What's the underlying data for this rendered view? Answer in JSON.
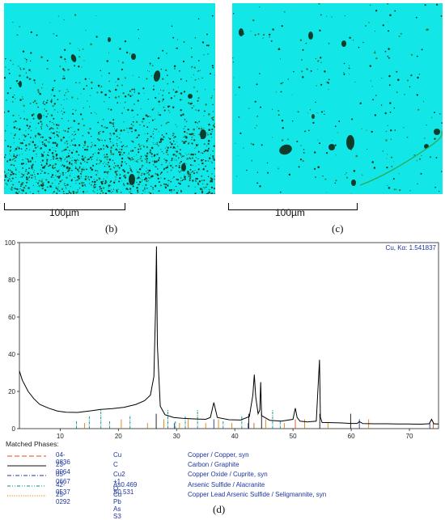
{
  "panels": [
    {
      "label": "(b)",
      "scale_bar": "100µm"
    },
    {
      "label": "(c)",
      "scale_bar": "100µm"
    },
    {
      "label": "(d)"
    }
  ],
  "colors": {
    "map_background": "#12e6e6",
    "particles": "#0f3d2c",
    "trace": "#000000",
    "legend_text": "#1c35a0"
  },
  "chart_data": {
    "type": "line",
    "title": "",
    "annotation": "Cu, Kα: 1.541837",
    "xlabel": "",
    "ylabel": "",
    "xlim": [
      3,
      75
    ],
    "ylim": [
      0,
      100
    ],
    "x_ticks": [
      10,
      20,
      30,
      40,
      50,
      60,
      70
    ],
    "y_ticks": [
      0,
      20,
      40,
      60,
      80,
      100
    ],
    "grid": false,
    "series": [
      {
        "type": "line",
        "x": [
          3,
          3.5,
          4.5,
          5.5,
          6.5,
          8,
          9.5,
          11,
          13,
          15,
          17,
          19,
          21,
          23,
          24.5,
          25.5,
          26.1,
          26.4,
          26.55,
          26.7,
          27.2,
          28,
          29.5,
          31,
          33,
          35,
          35.8,
          36.4,
          37,
          39,
          41,
          42.5,
          43.1,
          43.35,
          43.6,
          44,
          44.3,
          44.45,
          44.6,
          46,
          48,
          50,
          50.4,
          50.7,
          51.2,
          52.5,
          54,
          54.55,
          54.7,
          55,
          56.5,
          58,
          60,
          61,
          61.4,
          62,
          64,
          66,
          68,
          70,
          72,
          73.4,
          73.8,
          74.2,
          74.6,
          75
        ],
        "y": [
          31,
          26,
          20,
          16,
          13,
          11,
          9.5,
          8.8,
          8.7,
          9.5,
          10.3,
          10.8,
          11.5,
          13,
          15,
          18,
          28,
          65,
          98,
          45,
          12,
          7.5,
          6,
          5.5,
          5.2,
          5,
          6,
          14,
          6,
          4.8,
          4.6,
          6.5,
          18,
          29,
          17,
          8,
          10,
          25,
          7,
          4.5,
          4,
          5,
          11,
          6,
          4,
          3.6,
          4,
          37,
          6,
          3.3,
          3.2,
          3.1,
          2.8,
          2.8,
          3.8,
          2.7,
          2.6,
          2.6,
          2.5,
          2.5,
          2.4,
          2.6,
          5,
          2.6,
          2.5,
          2.5
        ]
      }
    ],
    "reference_phases": [
      {
        "code": "04-0836",
        "formula": "Cu",
        "name": "Copper / Copper, syn",
        "style": "dashed",
        "color": "#e05000"
      },
      {
        "code": "23-0064",
        "formula": "C",
        "name": "Carbon / Graphite",
        "style": "solid",
        "color": "#111111"
      },
      {
        "code": "05-0667",
        "formula": "Cu2 +1 O",
        "name": "Copper Oxide / Cuprite, syn",
        "style": "dashdot",
        "color": "#1c35a0"
      },
      {
        "code": "42-0537",
        "formula": "As0.469 S0.531",
        "name": "Arsenic Sulfide / Alacranite",
        "style": "dashdotdot",
        "color": "#008c8c"
      },
      {
        "code": "25-0292",
        "formula": "Cu Pb As S3",
        "name": "Copper Lead Arsenic Sulfide / Seligmannite, syn",
        "style": "dotted",
        "color": "#e08000"
      }
    ],
    "legend_title": "Matched Phases:",
    "legend_position": "bottom"
  }
}
